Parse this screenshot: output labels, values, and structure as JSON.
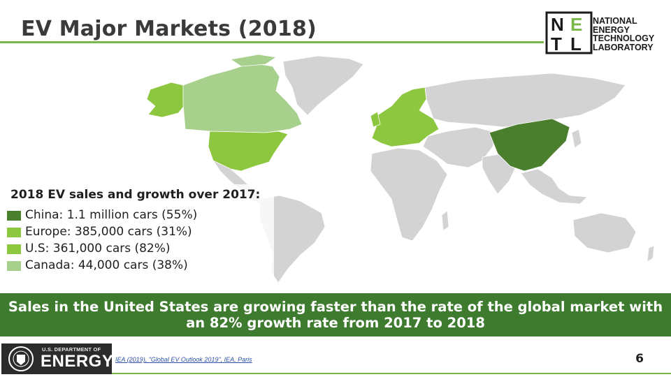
{
  "title": "EV Major Markets (2018)",
  "logo": {
    "letters": [
      "N",
      "E",
      "T",
      "L"
    ],
    "words": [
      "NATIONAL",
      "ENERGY",
      "TECHNOLOGY",
      "LABORATORY"
    ]
  },
  "legend": {
    "heading": "2018 EV sales and growth over 2017:",
    "items": [
      {
        "label": "China: 1.1 million cars (55%)",
        "color": "#4a7f2e"
      },
      {
        "label": "Europe: 385,000 cars (31%)",
        "color": "#8dc63f"
      },
      {
        "label": "U.S: 361,000 cars (82%)",
        "color": "#8dc63f"
      },
      {
        "label": "Canada: 44,000 cars (38%)",
        "color": "#a8d08d"
      }
    ]
  },
  "map_colors": {
    "ocean": "#ffffff",
    "land": "#d3d3d3",
    "china": "#4a7f2e",
    "europe": "#8dc63f",
    "us": "#8dc63f",
    "canada": "#a8d08d",
    "border": "#ffffff"
  },
  "banner": {
    "text": "Sales in the United States are growing faster than the rate of the global market with an 82% growth rate from 2017 to 2018",
    "color": "#3e7b2f"
  },
  "footer": {
    "doe_small": "U.S. DEPARTMENT OF",
    "doe_big": "ENERGY",
    "citation": "IEA (2019), \"Global EV Outlook 2019\", IEA, Paris",
    "page_number": "6"
  }
}
